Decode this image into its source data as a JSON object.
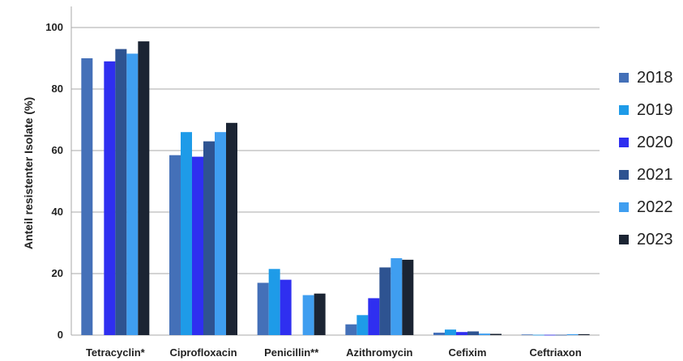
{
  "chart_data": {
    "type": "bar",
    "ylabel": "Anteil resistenter Isolate (%)",
    "xlabel": "",
    "ylim": [
      0,
      100
    ],
    "yticks": [
      0,
      20,
      40,
      60,
      80,
      100
    ],
    "grid": "horizontal",
    "legend_position": "right",
    "categories": [
      "Tetracyclin*",
      "Ciprofloxacin",
      "Penicillin**",
      "Azithromycin",
      "Cefixim",
      "Ceftriaxon"
    ],
    "series": [
      {
        "name": "2018",
        "color": "#4470b8",
        "values": [
          90,
          58.5,
          17,
          3.5,
          0.8,
          0.2
        ]
      },
      {
        "name": "2019",
        "color": "#1e9be8",
        "values": [
          null,
          66,
          21.5,
          6.5,
          1.8,
          0.1
        ]
      },
      {
        "name": "2020",
        "color": "#2f2ff0",
        "values": [
          89,
          58,
          18,
          12,
          1.0,
          0.1
        ]
      },
      {
        "name": "2021",
        "color": "#2e5391",
        "values": [
          93,
          63,
          null,
          22,
          1.2,
          0.1
        ]
      },
      {
        "name": "2022",
        "color": "#3f9ef0",
        "values": [
          91.5,
          66,
          13,
          25,
          0.5,
          0.3
        ]
      },
      {
        "name": "2023",
        "color": "#1b2433",
        "values": [
          95.5,
          69,
          13.5,
          24.5,
          0.4,
          0.3
        ]
      }
    ]
  }
}
